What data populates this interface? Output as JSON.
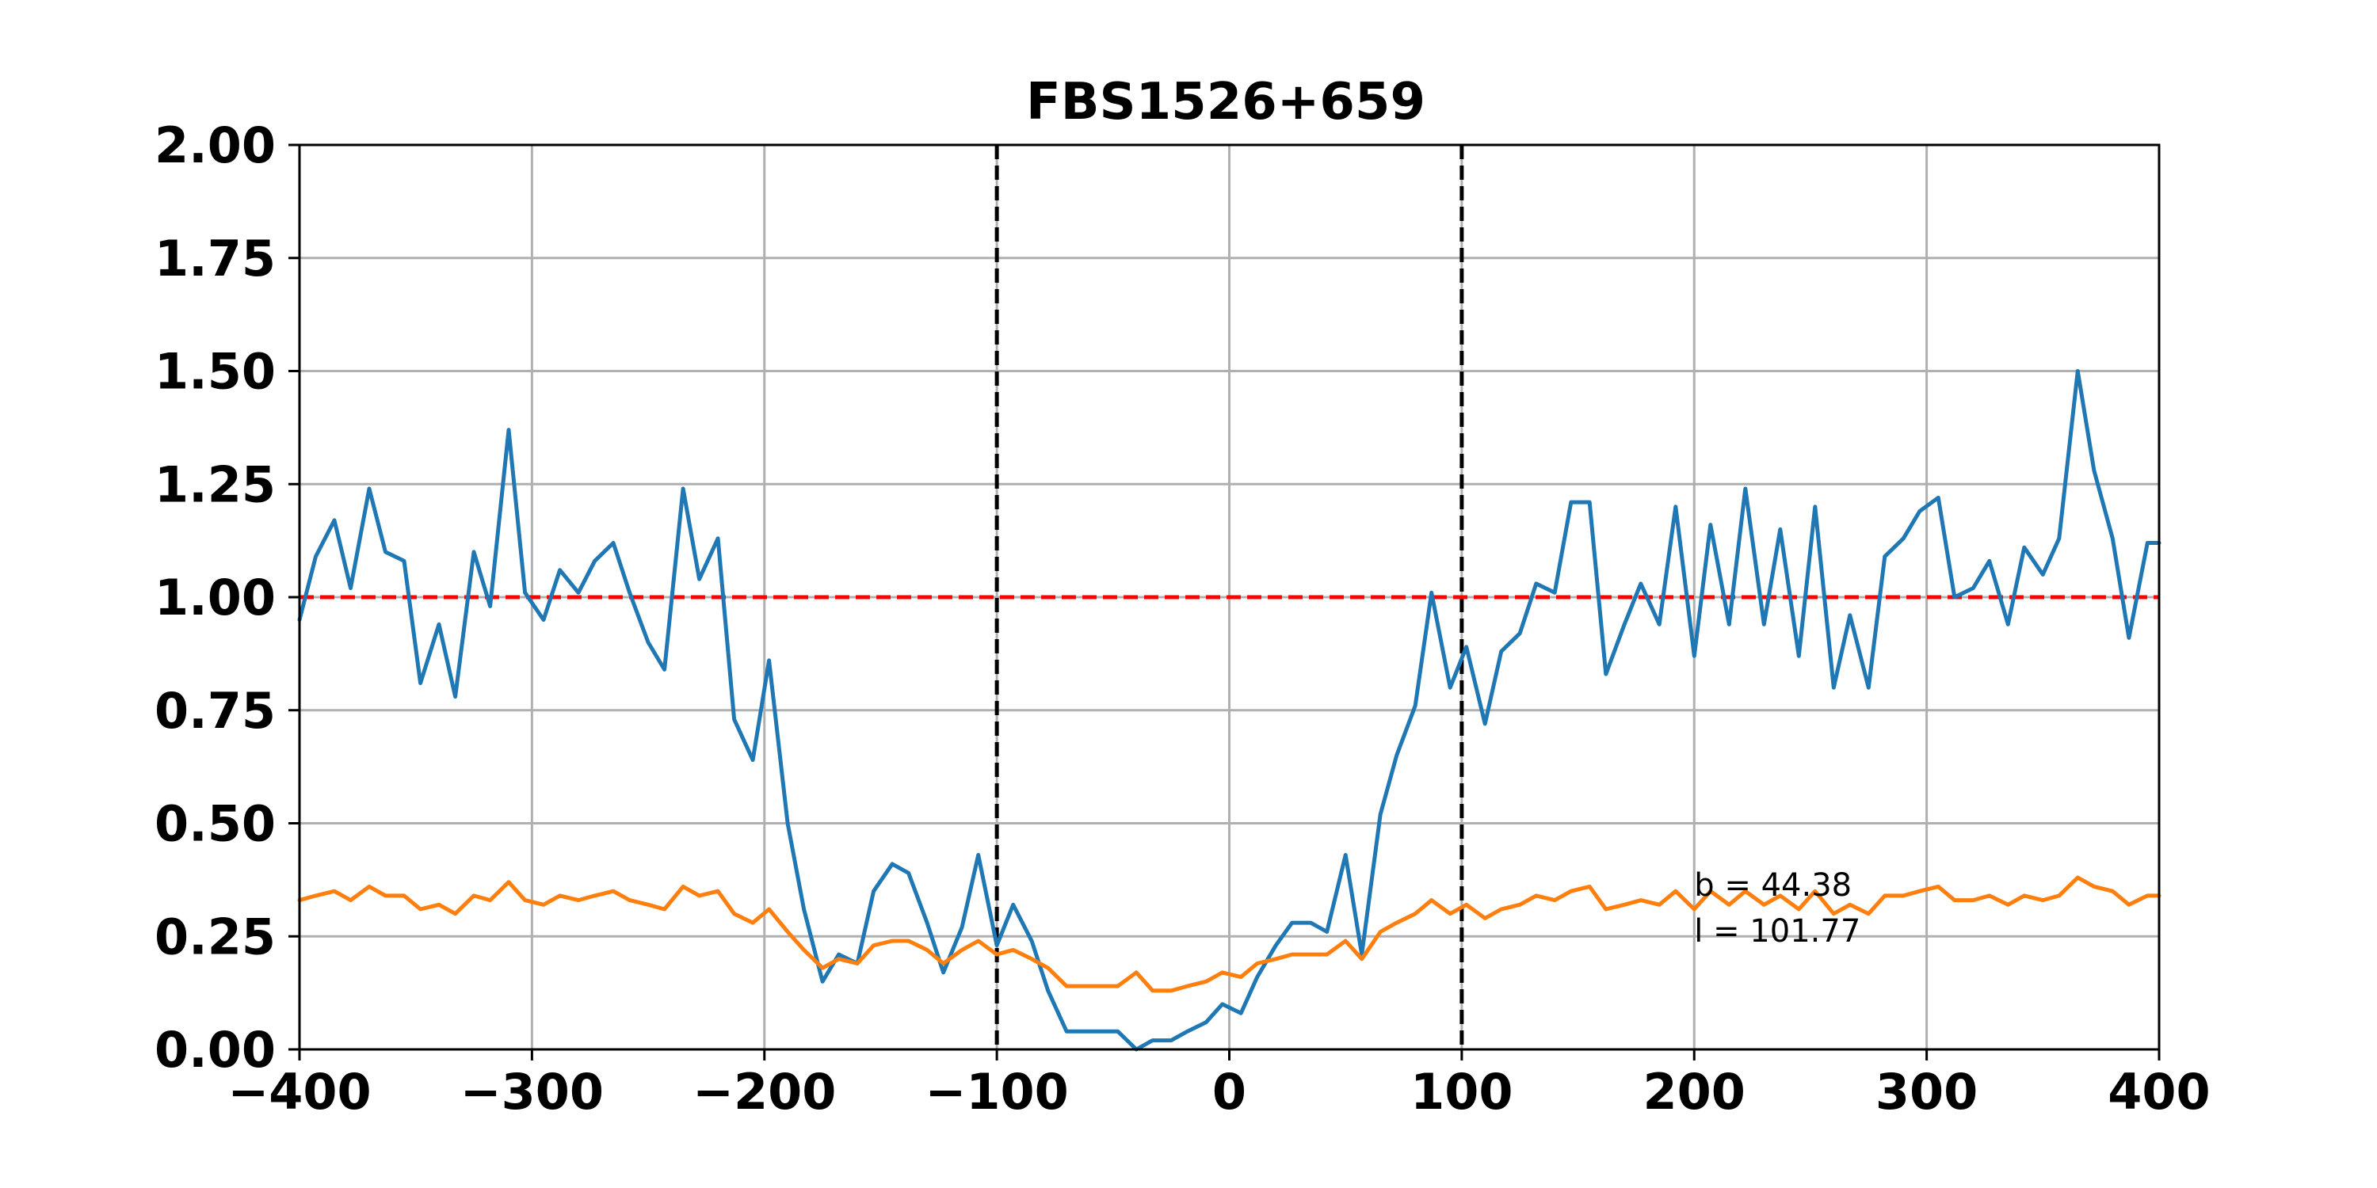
{
  "chart_data": {
    "type": "line",
    "title": "FBS1526+659",
    "xlabel": "",
    "ylabel": "",
    "xlim": [
      -400,
      400
    ],
    "ylim": [
      0,
      2
    ],
    "x_ticks": [
      -400,
      -300,
      -200,
      -100,
      0,
      100,
      200,
      300,
      400
    ],
    "y_ticks": [
      0,
      0.25,
      0.5,
      0.75,
      1.0,
      1.25,
      1.5,
      1.75,
      2.0
    ],
    "x_tick_labels": [
      "−400",
      "−300",
      "−200",
      "−100",
      "0",
      "100",
      "200",
      "300",
      "400"
    ],
    "y_tick_labels": [
      "0.00",
      "0.25",
      "0.50",
      "0.75",
      "1.00",
      "1.25",
      "1.50",
      "1.75",
      "2.00"
    ],
    "grid": true,
    "series": [
      {
        "color": "#1f77b4",
        "x": [
          -400,
          -393,
          -385,
          -378,
          -370,
          -363,
          -355,
          -348,
          -340,
          -333,
          -325,
          -318,
          -310,
          -303,
          -295,
          -288,
          -280,
          -273,
          -265,
          -258,
          -250,
          -243,
          -235,
          -228,
          -220,
          -213,
          -205,
          -198,
          -190,
          -183,
          -175,
          -168,
          -160,
          -153,
          -145,
          -138,
          -130,
          -123,
          -115,
          -108,
          -100,
          -93,
          -85,
          -78,
          -70,
          -63,
          -55,
          -48,
          -40,
          -33,
          -25,
          -18,
          -10,
          -3,
          5,
          12,
          20,
          27,
          35,
          42,
          50,
          57,
          65,
          72,
          80,
          87,
          95,
          102,
          110,
          117,
          125,
          132,
          140,
          147,
          155,
          162,
          170,
          177,
          185,
          192,
          200,
          207,
          215,
          222,
          230,
          237,
          245,
          252,
          260,
          267,
          275,
          282,
          290,
          297,
          305,
          312,
          320,
          327,
          335,
          342,
          350,
          357,
          365,
          372,
          380,
          387,
          395,
          400
        ],
        "y": [
          0.95,
          1.09,
          1.17,
          1.02,
          1.24,
          1.1,
          1.08,
          0.81,
          0.94,
          0.78,
          1.1,
          0.98,
          1.37,
          1.01,
          0.95,
          1.06,
          1.01,
          1.08,
          1.12,
          1.01,
          0.9,
          0.84,
          1.24,
          1.04,
          1.13,
          0.73,
          0.64,
          0.86,
          0.5,
          0.31,
          0.15,
          0.21,
          0.19,
          0.35,
          0.41,
          0.39,
          0.28,
          0.17,
          0.27,
          0.43,
          0.23,
          0.32,
          0.24,
          0.13,
          0.04,
          0.04,
          0.04,
          0.04,
          0.0,
          0.02,
          0.02,
          0.04,
          0.06,
          0.1,
          0.08,
          0.16,
          0.23,
          0.28,
          0.28,
          0.26,
          0.43,
          0.21,
          0.52,
          0.65,
          0.76,
          1.01,
          0.8,
          0.89,
          0.72,
          0.88,
          0.92,
          1.03,
          1.01,
          1.21,
          1.21,
          0.83,
          0.94,
          1.03,
          0.94,
          1.2,
          0.87,
          1.16,
          0.94,
          1.24,
          0.94,
          1.15,
          0.87,
          1.2,
          0.8,
          0.96,
          0.8,
          1.09,
          1.13,
          1.19,
          1.22,
          1.0,
          1.02,
          1.08,
          0.94,
          1.11,
          1.05,
          1.13,
          1.5,
          1.28,
          1.13,
          0.91,
          1.12,
          1.12
        ]
      },
      {
        "color": "#ff7f0e",
        "x": [
          -400,
          -393,
          -385,
          -378,
          -370,
          -363,
          -355,
          -348,
          -340,
          -333,
          -325,
          -318,
          -310,
          -303,
          -295,
          -288,
          -280,
          -273,
          -265,
          -258,
          -250,
          -243,
          -235,
          -228,
          -220,
          -213,
          -205,
          -198,
          -190,
          -183,
          -175,
          -168,
          -160,
          -153,
          -145,
          -138,
          -130,
          -123,
          -115,
          -108,
          -100,
          -93,
          -85,
          -78,
          -70,
          -63,
          -55,
          -48,
          -40,
          -33,
          -25,
          -18,
          -10,
          -3,
          5,
          12,
          20,
          27,
          35,
          42,
          50,
          57,
          65,
          72,
          80,
          87,
          95,
          102,
          110,
          117,
          125,
          132,
          140,
          147,
          155,
          162,
          170,
          177,
          185,
          192,
          200,
          207,
          215,
          222,
          230,
          237,
          245,
          252,
          260,
          267,
          275,
          282,
          290,
          297,
          305,
          312,
          320,
          327,
          335,
          342,
          350,
          357,
          365,
          372,
          380,
          387,
          395,
          400
        ],
        "y": [
          0.33,
          0.34,
          0.35,
          0.33,
          0.36,
          0.34,
          0.34,
          0.31,
          0.32,
          0.3,
          0.34,
          0.33,
          0.37,
          0.33,
          0.32,
          0.34,
          0.33,
          0.34,
          0.35,
          0.33,
          0.32,
          0.31,
          0.36,
          0.34,
          0.35,
          0.3,
          0.28,
          0.31,
          0.26,
          0.22,
          0.18,
          0.2,
          0.19,
          0.23,
          0.24,
          0.24,
          0.22,
          0.19,
          0.22,
          0.24,
          0.21,
          0.22,
          0.2,
          0.18,
          0.14,
          0.14,
          0.14,
          0.14,
          0.17,
          0.13,
          0.13,
          0.14,
          0.15,
          0.17,
          0.16,
          0.19,
          0.2,
          0.21,
          0.21,
          0.21,
          0.24,
          0.2,
          0.26,
          0.28,
          0.3,
          0.33,
          0.3,
          0.32,
          0.29,
          0.31,
          0.32,
          0.34,
          0.33,
          0.35,
          0.36,
          0.31,
          0.32,
          0.33,
          0.32,
          0.35,
          0.31,
          0.35,
          0.32,
          0.35,
          0.32,
          0.34,
          0.31,
          0.35,
          0.3,
          0.32,
          0.3,
          0.34,
          0.34,
          0.35,
          0.36,
          0.33,
          0.33,
          0.34,
          0.32,
          0.34,
          0.33,
          0.34,
          0.38,
          0.36,
          0.35,
          0.32,
          0.34,
          0.34
        ]
      }
    ],
    "reference_lines": {
      "horizontal": [
        {
          "y": 1.0,
          "color": "#ff0000",
          "style": "dashed"
        }
      ],
      "vertical": [
        {
          "x": -100,
          "color": "#000000",
          "style": "dashed"
        },
        {
          "x": 100,
          "color": "#000000",
          "style": "dashed"
        }
      ]
    },
    "annotations": {
      "line1": "b = 44.38",
      "line2": "l = 101.77",
      "x": 200,
      "y": 0.34
    }
  }
}
